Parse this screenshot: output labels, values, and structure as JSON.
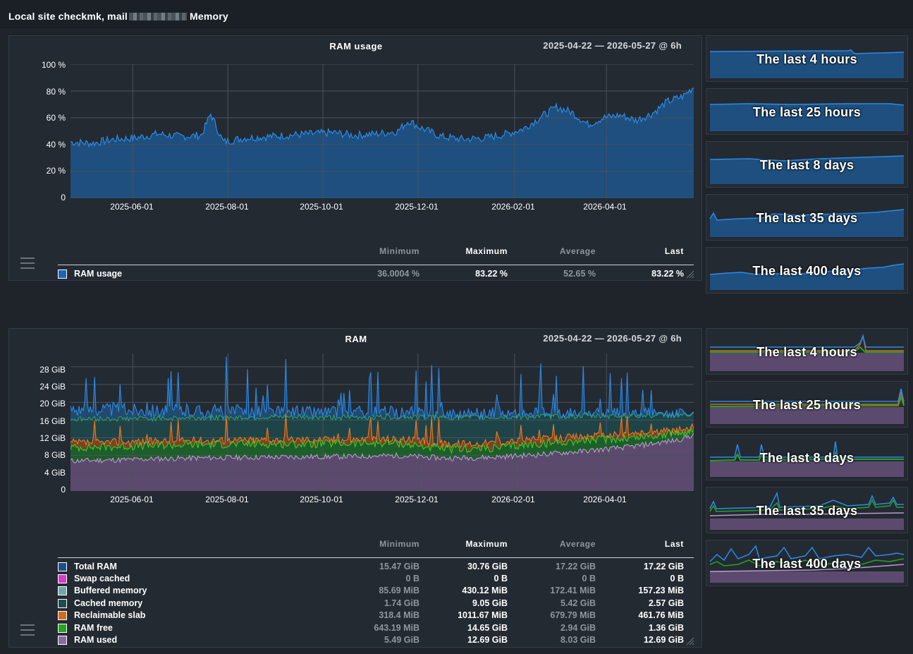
{
  "header": {
    "title_prefix": "Local site checkmk, mail",
    "title_suffix": "Memory"
  },
  "graphs": [
    {
      "title": "RAM usage",
      "range": "2025-04-22 — 2026-05-27 @ 6h",
      "legend_headers": {
        "min": "Minimum",
        "max": "Maximum",
        "avg": "Average",
        "last": "Last"
      },
      "legend": [
        {
          "name": "RAM usage",
          "color": "#1e64b4",
          "min": "36.0004 %",
          "max": "83.22 %",
          "avg": "52.65 %",
          "last": "83.22 %"
        }
      ],
      "thumbnails": [
        "The last 4 hours",
        "The last 25 hours",
        "The last 8 days",
        "The last 35 days",
        "The last 400 days"
      ]
    },
    {
      "title": "RAM",
      "range": "2025-04-22 — 2026-05-27 @ 6h",
      "legend_headers": {
        "min": "Minimum",
        "max": "Maximum",
        "avg": "Average",
        "last": "Last"
      },
      "legend": [
        {
          "name": "Total RAM",
          "color": "#1e4f8a",
          "min": "15.47 GiB",
          "max": "30.76 GiB",
          "avg": "17.22 GiB",
          "last": "17.22 GiB"
        },
        {
          "name": "Swap cached",
          "color": "#d63cc8",
          "min": "0 B",
          "max": "0 B",
          "avg": "0 B",
          "last": "0 B"
        },
        {
          "name": "Buffered memory",
          "color": "#6fa7a8",
          "min": "85.69 MiB",
          "max": "430.12 MiB",
          "avg": "172.41 MiB",
          "last": "157.23 MiB"
        },
        {
          "name": "Cached memory",
          "color": "#1e4c52",
          "min": "1.74 GiB",
          "max": "9.05 GiB",
          "avg": "5.42 GiB",
          "last": "2.57 GiB"
        },
        {
          "name": "Reclaimable slab",
          "color": "#d46a1c",
          "min": "318.4 MiB",
          "max": "1011.67 MiB",
          "avg": "679.79 MiB",
          "last": "461.76 MiB"
        },
        {
          "name": "RAM free",
          "color": "#27a324",
          "min": "643.19 MiB",
          "max": "14.65 GiB",
          "avg": "2.94 GiB",
          "last": "1.36 GiB"
        },
        {
          "name": "RAM used",
          "color": "#8b6aa0",
          "min": "5.49 GiB",
          "max": "12.69 GiB",
          "avg": "8.03 GiB",
          "last": "12.69 GiB"
        }
      ],
      "thumbnails": [
        "The last 4 hours",
        "The last 25 hours",
        "The last 8 days",
        "The last 35 days",
        "The last 400 days"
      ]
    }
  ],
  "chart_data": [
    {
      "type": "area",
      "title": "RAM usage",
      "xlabel": "",
      "ylabel": "",
      "x_ticks": [
        "2025-06-01",
        "2025-08-01",
        "2025-10-01",
        "2025-12-01",
        "2026-02-01",
        "2026-04-01"
      ],
      "y_ticks": [
        "0",
        "20 %",
        "40 %",
        "60 %",
        "80 %",
        "100 %"
      ],
      "ylim": [
        0,
        100
      ],
      "xlim": [
        "2025-04-22",
        "2026-05-27"
      ],
      "grid": true,
      "series": [
        {
          "name": "RAM usage",
          "color": "#2b8be8",
          "x": [
            "2025-04-22",
            "2025-05-06",
            "2025-05-20",
            "2025-06-03",
            "2025-06-17",
            "2025-07-01",
            "2025-07-15",
            "2025-07-21",
            "2025-07-29",
            "2025-08-12",
            "2025-08-26",
            "2025-09-09",
            "2025-09-23",
            "2025-10-07",
            "2025-10-21",
            "2025-11-04",
            "2025-11-18",
            "2025-11-25",
            "2025-12-02",
            "2025-12-16",
            "2025-12-30",
            "2026-01-13",
            "2026-01-27",
            "2026-02-07",
            "2026-02-17",
            "2026-02-28",
            "2026-03-10",
            "2026-03-20",
            "2026-03-30",
            "2026-04-10",
            "2026-04-20",
            "2026-04-30",
            "2026-05-10",
            "2026-05-20",
            "2026-05-27"
          ],
          "y": [
            42,
            41,
            44,
            45,
            48,
            46,
            47,
            63,
            42,
            45,
            46,
            47,
            48,
            49,
            47,
            48,
            50,
            58,
            53,
            46,
            44,
            45,
            48,
            52,
            60,
            68,
            64,
            55,
            60,
            62,
            58,
            63,
            72,
            76,
            83
          ]
        }
      ]
    },
    {
      "type": "area",
      "title": "RAM",
      "xlabel": "",
      "ylabel": "",
      "x_ticks": [
        "2025-06-01",
        "2025-08-01",
        "2025-10-01",
        "2025-12-01",
        "2026-02-01",
        "2026-04-01"
      ],
      "y_ticks": [
        "0",
        "4 GiB",
        "8 GiB",
        "12 GiB",
        "16 GiB",
        "20 GiB",
        "24 GiB",
        "28 GiB"
      ],
      "ylim": [
        0,
        31
      ],
      "xlim": [
        "2025-04-22",
        "2026-05-27"
      ],
      "grid": true,
      "x": [
        "2025-04-22",
        "2025-05-22",
        "2025-06-21",
        "2025-07-21",
        "2025-08-20",
        "2025-09-19",
        "2025-10-19",
        "2025-11-18",
        "2025-12-18",
        "2026-01-17",
        "2026-02-16",
        "2026-03-18",
        "2026-04-17",
        "2026-05-17",
        "2026-05-27"
      ],
      "series": [
        {
          "name": "RAM used",
          "color": "#8b6aa0",
          "y": [
            6.8,
            7.0,
            7.3,
            7.5,
            7.6,
            7.7,
            7.8,
            8.0,
            7.4,
            7.6,
            8.2,
            9.0,
            10.0,
            11.5,
            12.7
          ]
        },
        {
          "name": "RAM free",
          "color": "#27a324",
          "y": [
            9.8,
            10.0,
            10.3,
            10.5,
            10.6,
            10.6,
            10.7,
            10.8,
            9.4,
            9.6,
            10.6,
            11.4,
            12.0,
            13.0,
            13.8
          ]
        },
        {
          "name": "Reclaimable slab",
          "color": "#d46a1c",
          "y": [
            10.8,
            11.0,
            11.2,
            11.4,
            11.5,
            11.6,
            11.6,
            11.7,
            10.6,
            10.8,
            11.6,
            12.3,
            12.8,
            13.6,
            14.3
          ]
        },
        {
          "name": "Cached memory",
          "color": "#1e4c52",
          "y": [
            16.2,
            16.3,
            16.4,
            16.5,
            16.6,
            16.6,
            16.6,
            16.7,
            16.6,
            16.6,
            16.8,
            16.9,
            17.0,
            17.1,
            17.2
          ]
        },
        {
          "name": "Total RAM",
          "color": "#2b8be8",
          "y": [
            18.5,
            18.4,
            18.2,
            18.0,
            17.9,
            17.8,
            17.7,
            17.6,
            17.4,
            17.3,
            17.2,
            17.2,
            17.2,
            17.2,
            17.2
          ]
        }
      ]
    }
  ]
}
